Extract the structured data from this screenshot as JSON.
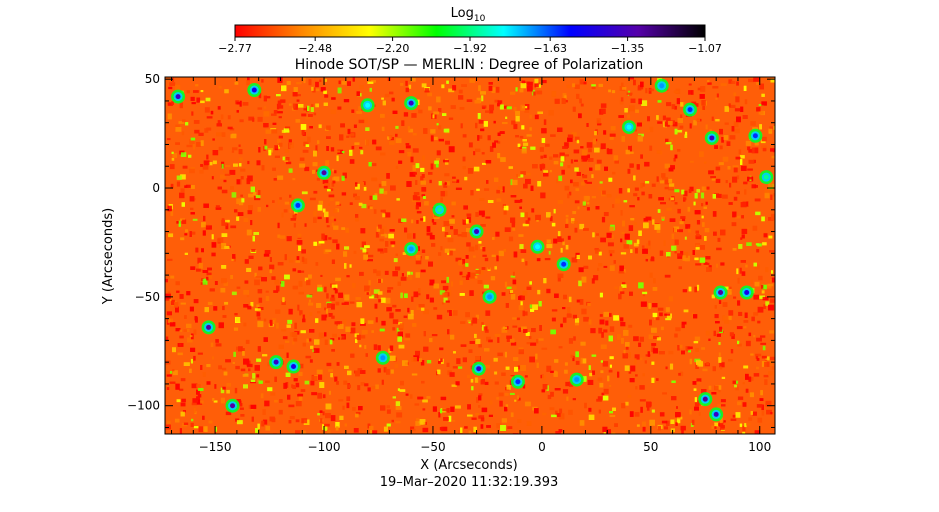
{
  "chart_data": {
    "type": "heatmap",
    "title": "Hinode SOT/SP — MERLIN : Degree of Polarization",
    "xlabel": "X (Arcseconds)",
    "ylabel": "Y (Arcseconds)",
    "timestamp": "19–Mar–2020 11:32:19.393",
    "xlim": [
      -173,
      107
    ],
    "ylim": [
      -113,
      51
    ],
    "x_ticks": [
      -150,
      -100,
      -50,
      0,
      50,
      100
    ],
    "x_tick_labels": [
      "−150",
      "−100",
      "−50",
      "0",
      "50",
      "100"
    ],
    "y_ticks": [
      -100,
      -50,
      0,
      50
    ],
    "y_tick_labels": [
      "−100",
      "−50",
      "0",
      "50"
    ],
    "colorbar": {
      "label_base": "Log",
      "label_sub": "10",
      "range": [
        -2.77,
        -1.07
      ],
      "ticks": [
        -2.77,
        -2.48,
        -2.2,
        -1.92,
        -1.63,
        -1.35,
        -1.07
      ],
      "tick_labels": [
        "−2.77",
        "−2.48",
        "−2.20",
        "−1.92",
        "−1.63",
        "−1.35",
        "−1.07"
      ],
      "colormap": [
        "#ff0000",
        "#ff8800",
        "#ffff00",
        "#00ff00",
        "#00ffff",
        "#0000ff",
        "#5500aa",
        "#000000"
      ]
    },
    "background_value_range": [
      -2.77,
      -2.5
    ],
    "features": [
      {
        "x": -167,
        "y": 42,
        "value": -1.4
      },
      {
        "x": -132,
        "y": 45,
        "value": -1.5
      },
      {
        "x": -60,
        "y": 39,
        "value": -1.4
      },
      {
        "x": -100,
        "y": 7,
        "value": -1.3
      },
      {
        "x": -80,
        "y": 38,
        "value": -1.8
      },
      {
        "x": -112,
        "y": -8,
        "value": -1.6
      },
      {
        "x": -47,
        "y": -10,
        "value": -1.9
      },
      {
        "x": -30,
        "y": -20,
        "value": -1.4
      },
      {
        "x": -60,
        "y": -28,
        "value": -1.7
      },
      {
        "x": -2,
        "y": -27,
        "value": -1.8
      },
      {
        "x": 10,
        "y": -35,
        "value": -1.6
      },
      {
        "x": -153,
        "y": -64,
        "value": -1.3
      },
      {
        "x": -122,
        "y": -80,
        "value": -1.4
      },
      {
        "x": -114,
        "y": -82,
        "value": -1.5
      },
      {
        "x": -142,
        "y": -100,
        "value": -1.3
      },
      {
        "x": -73,
        "y": -78,
        "value": -1.7
      },
      {
        "x": -29,
        "y": -83,
        "value": -1.4
      },
      {
        "x": -11,
        "y": -89,
        "value": -1.6
      },
      {
        "x": 16,
        "y": -88,
        "value": -1.7
      },
      {
        "x": 75,
        "y": -97,
        "value": -1.3
      },
      {
        "x": 80,
        "y": -104,
        "value": -1.4
      },
      {
        "x": 82,
        "y": -48,
        "value": -1.3
      },
      {
        "x": 94,
        "y": -48,
        "value": -1.5
      },
      {
        "x": 68,
        "y": 36,
        "value": -1.6
      },
      {
        "x": 78,
        "y": 23,
        "value": -1.4
      },
      {
        "x": 98,
        "y": 24,
        "value": -1.6
      },
      {
        "x": 55,
        "y": 47,
        "value": -1.7
      },
      {
        "x": 40,
        "y": 28,
        "value": -1.8
      },
      {
        "x": -24,
        "y": -50,
        "value": -1.7
      },
      {
        "x": 103,
        "y": 5,
        "value": -1.9
      }
    ]
  }
}
